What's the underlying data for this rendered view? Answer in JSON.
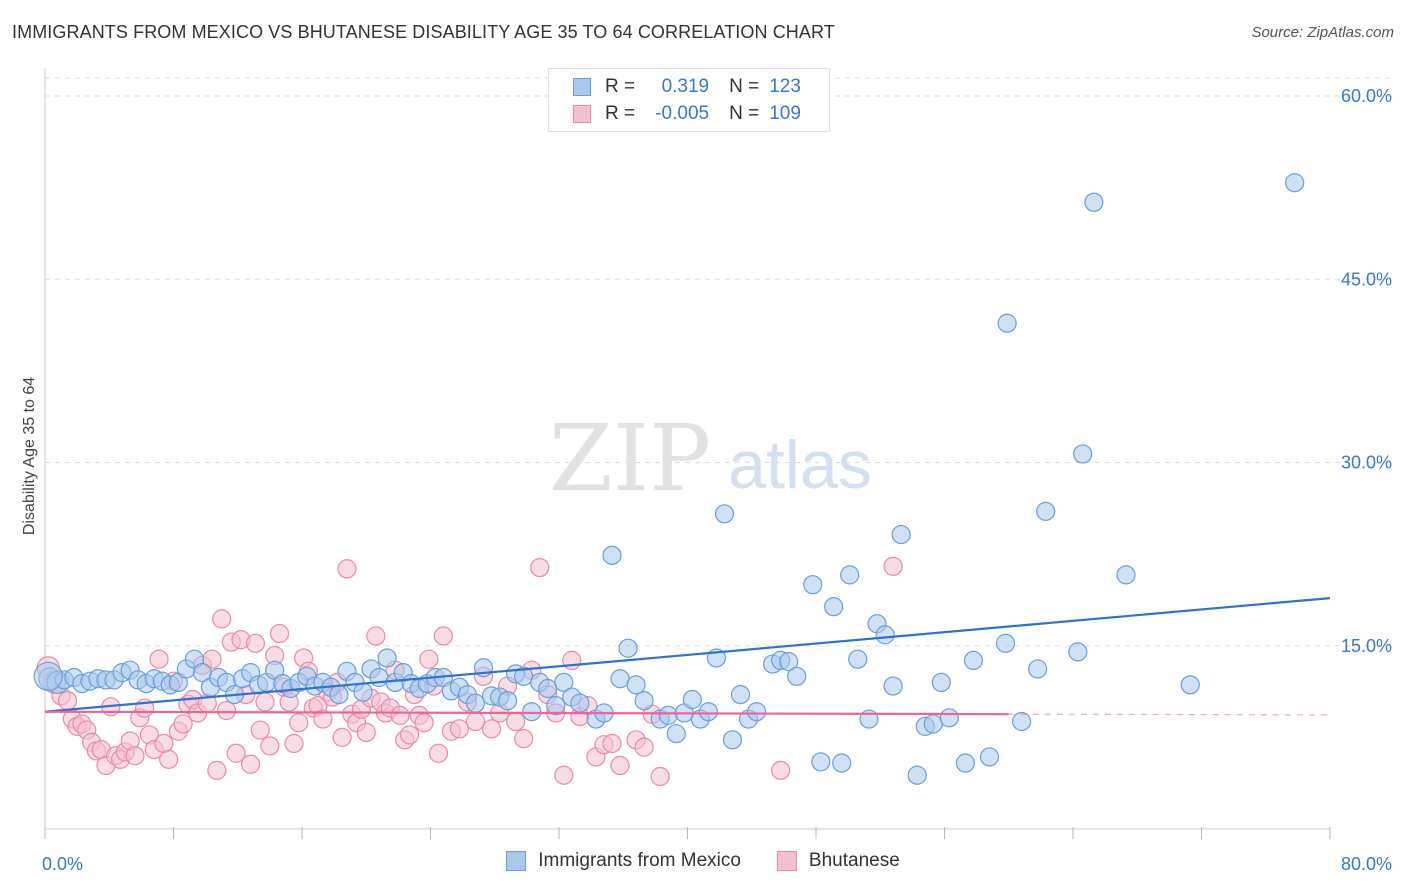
{
  "title": "IMMIGRANTS FROM MEXICO VS BHUTANESE DISABILITY AGE 35 TO 64 CORRELATION CHART",
  "source": "Source: ZipAtlas.com",
  "watermark": {
    "zip": "ZIP",
    "atlas": "atlas"
  },
  "legend": {
    "rows": [
      {
        "r_label": "R =",
        "r_value": "0.319",
        "n_label": "N =",
        "n_value": "123"
      },
      {
        "r_label": "R =",
        "r_value": "-0.005",
        "n_label": "N =",
        "n_value": "109"
      }
    ]
  },
  "colors": {
    "blue_fill": "#aac8ee",
    "blue_stroke": "#6a9fd8",
    "blue_line": "#2f72d0",
    "pink_fill": "#f6bfd0",
    "pink_stroke": "#e98aa8",
    "pink_line": "#e8679a",
    "grid": "#dddddd",
    "tick_text": "#3a78c9"
  },
  "chart_data": {
    "type": "scatter",
    "title": "IMMIGRANTS FROM MEXICO VS BHUTANESE DISABILITY AGE 35 TO 64 CORRELATION CHART",
    "xlabel": "",
    "ylabel": "Disability Age 35 to 64",
    "xlim": [
      0,
      80
    ],
    "ylim": [
      0,
      60
    ],
    "x_tick_labels": [
      "0.0%",
      "80.0%"
    ],
    "y_ticks": [
      15,
      30,
      45,
      60
    ],
    "y_tick_labels": [
      "15.0%",
      "30.0%",
      "45.0%",
      "60.0%"
    ],
    "series": [
      {
        "name": "Immigrants from Mexico",
        "color": "blue",
        "trend": {
          "x": [
            0,
            80
          ],
          "y": [
            9.6,
            18.9
          ]
        },
        "points": [
          [
            0.3,
            12.3
          ],
          [
            0.8,
            12.0
          ],
          [
            1.2,
            12.2
          ],
          [
            1.8,
            12.4
          ],
          [
            2.3,
            11.9
          ],
          [
            2.8,
            12.1
          ],
          [
            3.3,
            12.3
          ],
          [
            3.8,
            12.2
          ],
          [
            4.3,
            12.2
          ],
          [
            4.8,
            12.8
          ],
          [
            5.3,
            13.0
          ],
          [
            5.8,
            12.2
          ],
          [
            6.3,
            11.9
          ],
          [
            6.8,
            12.3
          ],
          [
            7.3,
            12.1
          ],
          [
            7.8,
            11.8
          ],
          [
            8.3,
            12.0
          ],
          [
            8.8,
            13.1
          ],
          [
            9.3,
            13.9
          ],
          [
            9.8,
            12.8
          ],
          [
            10.3,
            11.6
          ],
          [
            10.8,
            12.4
          ],
          [
            11.3,
            12.0
          ],
          [
            11.8,
            11.0
          ],
          [
            12.3,
            12.3
          ],
          [
            12.8,
            12.8
          ],
          [
            13.3,
            11.8
          ],
          [
            13.8,
            12.0
          ],
          [
            14.3,
            13.0
          ],
          [
            14.8,
            11.9
          ],
          [
            15.3,
            11.5
          ],
          [
            15.8,
            12.0
          ],
          [
            16.3,
            12.5
          ],
          [
            16.8,
            11.7
          ],
          [
            17.3,
            12.0
          ],
          [
            17.8,
            11.6
          ],
          [
            18.3,
            11.0
          ],
          [
            18.8,
            12.9
          ],
          [
            19.3,
            12.0
          ],
          [
            19.8,
            11.2
          ],
          [
            20.3,
            13.1
          ],
          [
            20.8,
            12.4
          ],
          [
            21.3,
            14.0
          ],
          [
            21.8,
            12.0
          ],
          [
            22.3,
            12.8
          ],
          [
            22.8,
            11.9
          ],
          [
            23.3,
            11.5
          ],
          [
            23.8,
            11.9
          ],
          [
            24.3,
            12.4
          ],
          [
            24.8,
            12.4
          ],
          [
            25.3,
            11.3
          ],
          [
            25.8,
            11.6
          ],
          [
            26.3,
            11.0
          ],
          [
            26.8,
            10.3
          ],
          [
            27.3,
            13.2
          ],
          [
            27.8,
            10.9
          ],
          [
            28.3,
            10.8
          ],
          [
            28.8,
            10.5
          ],
          [
            29.3,
            12.7
          ],
          [
            29.8,
            12.5
          ],
          [
            30.3,
            9.6
          ],
          [
            30.8,
            12.0
          ],
          [
            31.3,
            11.5
          ],
          [
            31.8,
            10.1
          ],
          [
            32.3,
            12.0
          ],
          [
            32.8,
            10.8
          ],
          [
            33.3,
            10.3
          ],
          [
            34.3,
            9.0
          ],
          [
            34.8,
            9.5
          ],
          [
            35.3,
            22.4
          ],
          [
            35.8,
            12.3
          ],
          [
            36.3,
            14.8
          ],
          [
            36.8,
            11.8
          ],
          [
            37.3,
            10.5
          ],
          [
            38.3,
            9.0
          ],
          [
            38.8,
            9.3
          ],
          [
            39.3,
            7.8
          ],
          [
            39.8,
            9.5
          ],
          [
            40.3,
            10.6
          ],
          [
            40.8,
            9.0
          ],
          [
            41.3,
            9.6
          ],
          [
            41.8,
            14.0
          ],
          [
            42.3,
            25.8
          ],
          [
            42.8,
            7.3
          ],
          [
            43.3,
            11.0
          ],
          [
            43.8,
            9.0
          ],
          [
            44.3,
            9.6
          ],
          [
            45.3,
            13.5
          ],
          [
            45.8,
            13.8
          ],
          [
            46.3,
            13.7
          ],
          [
            46.8,
            12.5
          ],
          [
            47.8,
            20.0
          ],
          [
            48.3,
            5.5
          ],
          [
            49.1,
            18.2
          ],
          [
            49.6,
            5.4
          ],
          [
            50.1,
            20.8
          ],
          [
            50.6,
            13.9
          ],
          [
            51.3,
            9.0
          ],
          [
            51.8,
            16.8
          ],
          [
            52.3,
            15.9
          ],
          [
            52.8,
            11.7
          ],
          [
            53.3,
            24.1
          ],
          [
            54.3,
            4.4
          ],
          [
            54.8,
            8.4
          ],
          [
            55.3,
            8.6
          ],
          [
            55.8,
            12.0
          ],
          [
            56.3,
            9.1
          ],
          [
            57.3,
            5.4
          ],
          [
            57.8,
            13.8
          ],
          [
            58.8,
            5.9
          ],
          [
            59.8,
            15.2
          ],
          [
            59.9,
            41.4
          ],
          [
            60.8,
            8.8
          ],
          [
            61.8,
            13.1
          ],
          [
            62.3,
            26.0
          ],
          [
            64.3,
            14.5
          ],
          [
            64.6,
            30.7
          ],
          [
            65.3,
            51.3
          ],
          [
            67.3,
            20.8
          ],
          [
            71.3,
            11.8
          ],
          [
            77.8,
            52.9
          ],
          [
            0.2,
            12.5
          ]
        ]
      },
      {
        "name": "Bhutanese",
        "color": "pink",
        "trend": {
          "x": [
            0,
            60
          ],
          "y": [
            9.6,
            9.4
          ]
        },
        "points": [
          [
            0.2,
            13.2
          ],
          [
            0.6,
            12.0
          ],
          [
            1.0,
            10.9
          ],
          [
            1.4,
            10.5
          ],
          [
            1.7,
            9.0
          ],
          [
            2.0,
            8.4
          ],
          [
            2.3,
            8.6
          ],
          [
            2.6,
            8.1
          ],
          [
            2.9,
            7.1
          ],
          [
            3.2,
            6.4
          ],
          [
            3.5,
            6.5
          ],
          [
            3.8,
            5.2
          ],
          [
            4.1,
            10.0
          ],
          [
            4.4,
            6.0
          ],
          [
            4.7,
            5.7
          ],
          [
            5.0,
            6.3
          ],
          [
            5.3,
            7.2
          ],
          [
            5.6,
            6.0
          ],
          [
            5.9,
            9.1
          ],
          [
            6.2,
            9.9
          ],
          [
            6.5,
            7.7
          ],
          [
            6.8,
            6.5
          ],
          [
            7.1,
            13.9
          ],
          [
            7.4,
            7.0
          ],
          [
            7.7,
            5.7
          ],
          [
            8.0,
            12.1
          ],
          [
            8.3,
            8.0
          ],
          [
            8.6,
            8.6
          ],
          [
            8.9,
            10.2
          ],
          [
            9.2,
            10.6
          ],
          [
            9.5,
            9.5
          ],
          [
            9.8,
            13.4
          ],
          [
            10.1,
            10.3
          ],
          [
            10.4,
            13.9
          ],
          [
            10.7,
            4.8
          ],
          [
            11.0,
            17.2
          ],
          [
            11.3,
            9.7
          ],
          [
            11.6,
            15.3
          ],
          [
            11.9,
            6.2
          ],
          [
            12.2,
            15.5
          ],
          [
            12.5,
            11.0
          ],
          [
            12.8,
            5.3
          ],
          [
            13.1,
            15.2
          ],
          [
            13.4,
            8.1
          ],
          [
            13.7,
            10.4
          ],
          [
            14.0,
            6.8
          ],
          [
            14.3,
            14.2
          ],
          [
            14.6,
            16.0
          ],
          [
            14.9,
            11.6
          ],
          [
            15.2,
            10.4
          ],
          [
            15.5,
            7.0
          ],
          [
            15.8,
            8.7
          ],
          [
            16.1,
            14.0
          ],
          [
            16.4,
            12.9
          ],
          [
            16.7,
            9.9
          ],
          [
            17.0,
            10.1
          ],
          [
            17.3,
            9.0
          ],
          [
            17.6,
            11.2
          ],
          [
            17.9,
            10.8
          ],
          [
            18.2,
            12.0
          ],
          [
            18.5,
            7.5
          ],
          [
            18.8,
            21.3
          ],
          [
            19.1,
            9.4
          ],
          [
            19.4,
            8.7
          ],
          [
            19.7,
            9.8
          ],
          [
            20.0,
            7.9
          ],
          [
            20.3,
            10.7
          ],
          [
            20.6,
            15.8
          ],
          [
            20.9,
            10.4
          ],
          [
            21.2,
            9.5
          ],
          [
            21.5,
            9.9
          ],
          [
            21.8,
            13.0
          ],
          [
            22.1,
            9.3
          ],
          [
            22.4,
            7.3
          ],
          [
            22.7,
            7.7
          ],
          [
            23.0,
            11.0
          ],
          [
            23.3,
            9.3
          ],
          [
            23.6,
            8.7
          ],
          [
            23.9,
            13.9
          ],
          [
            24.2,
            11.7
          ],
          [
            24.5,
            6.2
          ],
          [
            24.8,
            15.8
          ],
          [
            25.3,
            8.0
          ],
          [
            25.8,
            8.2
          ],
          [
            26.3,
            10.4
          ],
          [
            26.8,
            8.8
          ],
          [
            27.3,
            12.5
          ],
          [
            27.8,
            8.2
          ],
          [
            28.3,
            9.5
          ],
          [
            28.8,
            11.7
          ],
          [
            29.3,
            8.8
          ],
          [
            29.8,
            7.4
          ],
          [
            30.3,
            13.0
          ],
          [
            30.8,
            21.4
          ],
          [
            31.3,
            11.0
          ],
          [
            31.8,
            9.5
          ],
          [
            32.3,
            4.4
          ],
          [
            32.8,
            13.8
          ],
          [
            33.3,
            9.2
          ],
          [
            33.8,
            10.1
          ],
          [
            34.3,
            5.9
          ],
          [
            34.8,
            6.9
          ],
          [
            35.3,
            7.0
          ],
          [
            35.8,
            5.2
          ],
          [
            36.8,
            7.3
          ],
          [
            37.3,
            6.7
          ],
          [
            37.8,
            9.4
          ],
          [
            38.3,
            4.3
          ],
          [
            45.8,
            4.8
          ],
          [
            52.8,
            21.5
          ]
        ]
      }
    ]
  }
}
